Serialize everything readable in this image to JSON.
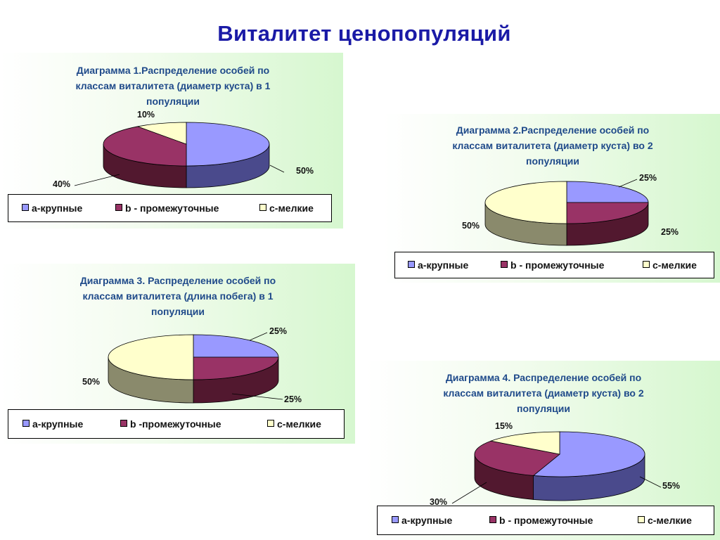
{
  "slide_title": "Виталитет ценопопуляций",
  "colors": {
    "a": {
      "top": "#9999ff",
      "side": "#4a4a8c"
    },
    "b": {
      "top": "#993366",
      "side": "#52182f"
    },
    "c": {
      "top": "#ffffcc",
      "side": "#8a8a6c"
    }
  },
  "chart_data": [
    {
      "type": "pie",
      "title_lines": [
        "Диаграмма 1.Распределение особей по",
        "классам виталитета (диаметр куста) в 1",
        "популяции"
      ],
      "categories": [
        "а-крупные",
        "b - промежуточные",
        "с-мелкие"
      ],
      "values": [
        50,
        40,
        10
      ],
      "labels": [
        "50%",
        "40%",
        "10%"
      ]
    },
    {
      "type": "pie",
      "title_lines": [
        "Диаграмма 2.Распределение особей по",
        "классам виталитета (диаметр куста) во 2",
        "популяции"
      ],
      "categories": [
        "а-крупные",
        "b - промежуточные",
        "с-мелкие"
      ],
      "values": [
        25,
        25,
        50
      ],
      "labels": [
        "25%",
        "25%",
        "50%"
      ]
    },
    {
      "type": "pie",
      "title_lines": [
        "Диаграмма 3. Распределение особей по",
        "классам виталитета (длина побега) в 1",
        "популяции"
      ],
      "categories": [
        "а-крупные",
        "b -промежуточные",
        "с-мелкие"
      ],
      "values": [
        25,
        25,
        50
      ],
      "labels": [
        "25%",
        "25%",
        "50%"
      ]
    },
    {
      "type": "pie",
      "title_lines": [
        "Диаграмма 4. Распределение особей по",
        "классам виталитета (диаметр куста) во 2",
        "популяции"
      ],
      "categories": [
        "а-крупные",
        "b - промежуточные",
        "с-мелкие"
      ],
      "values": [
        55,
        30,
        15
      ],
      "labels": [
        "55%",
        "30%",
        "15%"
      ]
    }
  ]
}
